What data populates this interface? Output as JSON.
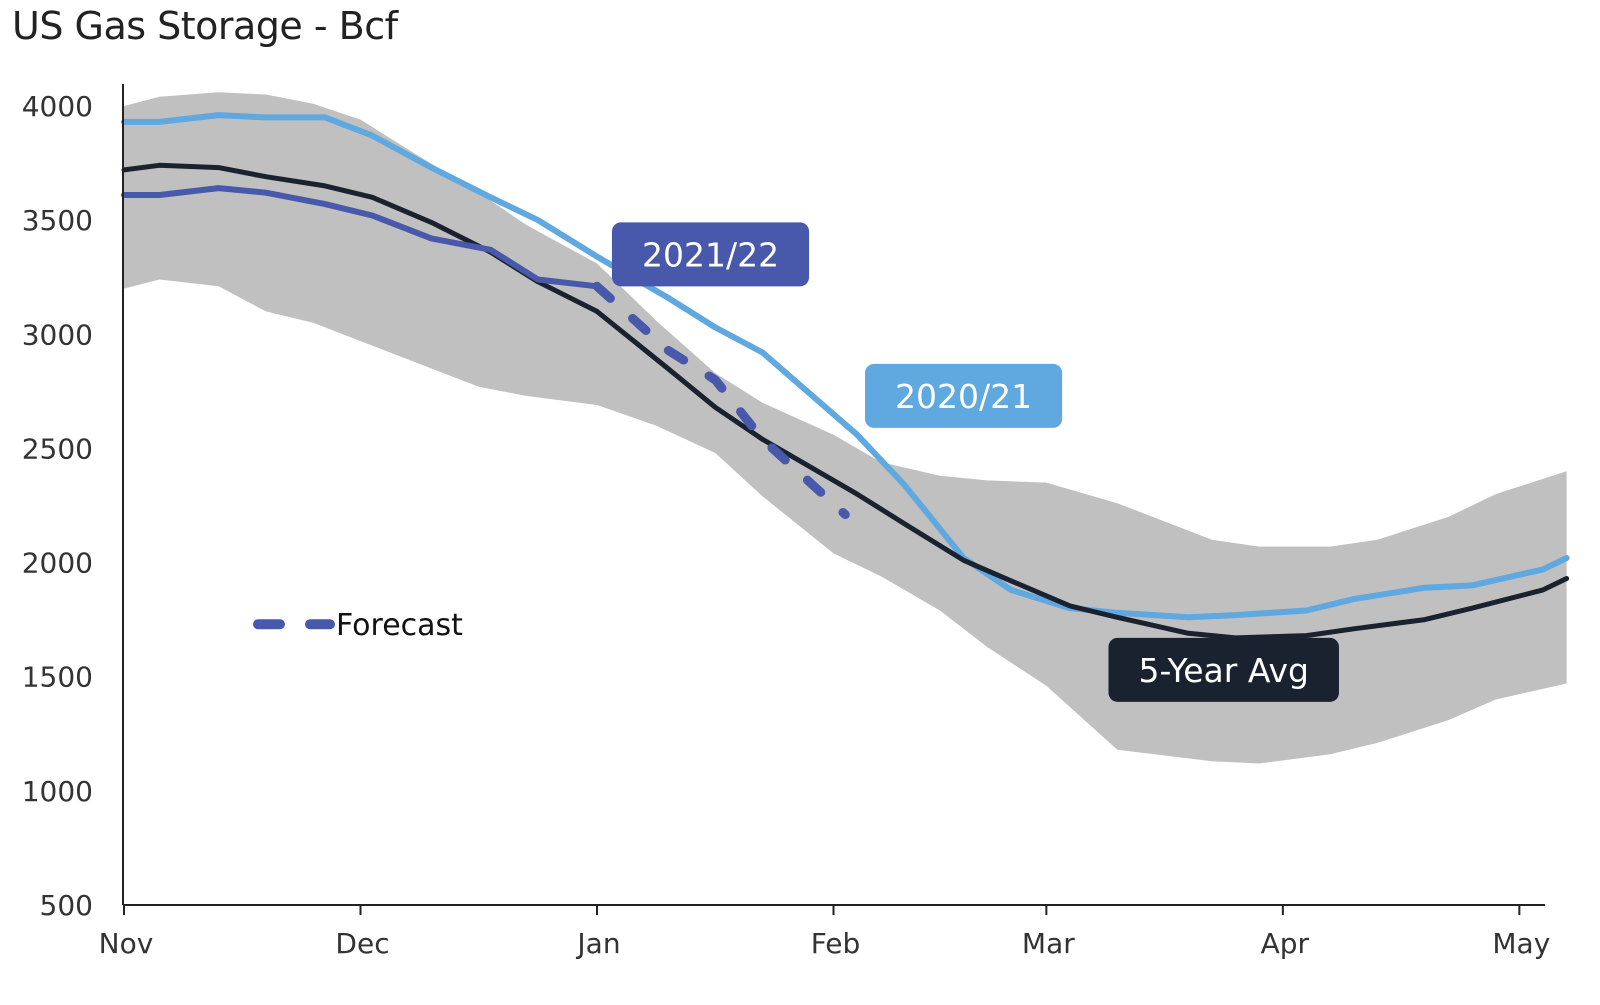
{
  "title": "US Gas Storage - Bcf",
  "chart_data": {
    "type": "line",
    "title": "US Gas Storage - Bcf",
    "xlabel": "",
    "ylabel": "",
    "ylim": [
      500,
      4100
    ],
    "yticks": [
      500,
      1000,
      1500,
      2000,
      2500,
      3000,
      3500,
      4000
    ],
    "x_tick_labels": [
      "Nov",
      "Dec",
      "Jan",
      "Feb",
      "Mar",
      "Apr",
      "May"
    ],
    "x_tick_weeks": [
      0,
      10,
      20,
      30,
      39,
      49,
      59
    ],
    "grid": false,
    "range_band": {
      "color": "#c0c0c0",
      "weeks": [
        0,
        1.5,
        4,
        6,
        8,
        10,
        12,
        15,
        17,
        20,
        22.5,
        25,
        27,
        30,
        32,
        34.5,
        36.5,
        39,
        42,
        46,
        48,
        51,
        53,
        56,
        58,
        61
      ],
      "upper": [
        4000,
        4040,
        4060,
        4050,
        4010,
        3940,
        3810,
        3620,
        3480,
        3310,
        3060,
        2830,
        2700,
        2560,
        2440,
        2380,
        2360,
        2350,
        2260,
        2100,
        2070,
        2070,
        2100,
        2200,
        2300,
        2400
      ],
      "lower": [
        3200,
        3240,
        3210,
        3100,
        3050,
        2970,
        2890,
        2770,
        2730,
        2690,
        2600,
        2480,
        2290,
        2040,
        1940,
        1790,
        1630,
        1460,
        1180,
        1130,
        1120,
        1160,
        1210,
        1310,
        1400,
        1470
      ]
    },
    "series": [
      {
        "name": "2020/21",
        "color": "#5fa8e0",
        "style": "solid",
        "weeks": [
          0,
          1.5,
          4,
          6,
          8.5,
          10.5,
          13,
          15.5,
          17.5,
          20,
          23,
          25,
          27,
          31,
          33,
          35.5,
          37.5,
          40,
          42,
          45,
          47,
          50,
          52,
          55,
          57,
          60,
          61
        ],
        "values": [
          3930,
          3930,
          3960,
          3950,
          3950,
          3870,
          3730,
          3600,
          3500,
          3340,
          3160,
          3030,
          2920,
          2560,
          2340,
          2020,
          1880,
          1800,
          1780,
          1760,
          1770,
          1790,
          1840,
          1890,
          1900,
          1970,
          2020
        ]
      },
      {
        "name": "5-Year Avg",
        "color": "#1a2230",
        "style": "solid",
        "weeks": [
          0,
          1.5,
          4,
          6,
          8.5,
          10.5,
          13,
          15.5,
          17.5,
          20,
          23,
          25,
          27,
          31,
          33,
          35.5,
          37.5,
          40,
          42,
          45,
          47,
          50,
          52,
          55,
          57,
          60,
          61
        ],
        "values": [
          3720,
          3740,
          3730,
          3690,
          3650,
          3600,
          3490,
          3360,
          3230,
          3100,
          2850,
          2680,
          2540,
          2300,
          2170,
          2010,
          1920,
          1810,
          1760,
          1690,
          1670,
          1680,
          1710,
          1750,
          1800,
          1880,
          1930
        ]
      },
      {
        "name": "2021/22",
        "color": "#4858aa",
        "style": "solid",
        "weeks": [
          0,
          1.5,
          4,
          6,
          8.5,
          10.5,
          13,
          15.5,
          17.5,
          20
        ],
        "values": [
          3610,
          3610,
          3640,
          3620,
          3570,
          3520,
          3420,
          3370,
          3240,
          3210
        ]
      },
      {
        "name": "Forecast",
        "color": "#4858aa",
        "style": "dashed",
        "weeks": [
          20,
          23,
          25,
          27,
          30.5
        ],
        "values": [
          3210,
          2930,
          2800,
          2540,
          2210
        ]
      }
    ],
    "annotations": [
      {
        "text": "2021/22",
        "color": "#4858aa",
        "week": 24.8,
        "value": 3350
      },
      {
        "text": "2020/21",
        "color": "#5fa8e0",
        "week": 35.5,
        "value": 2730
      },
      {
        "text": "5-Year Avg",
        "color": "#1a2230",
        "week": 46.5,
        "value": 1530
      }
    ],
    "legend": {
      "placement": "left-middle",
      "entries": [
        {
          "label": "Forecast",
          "color": "#4858aa",
          "style": "dashed"
        }
      ]
    }
  }
}
